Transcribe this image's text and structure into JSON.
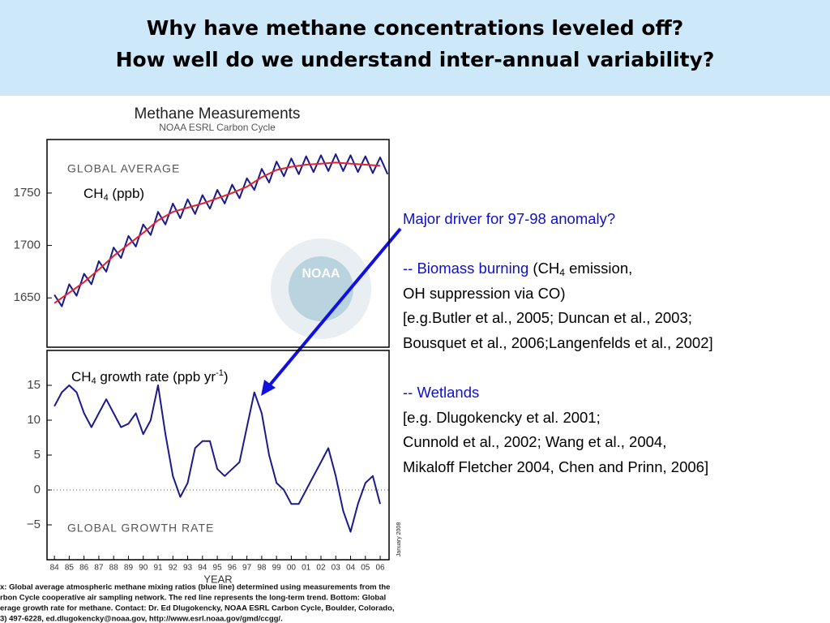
{
  "header": {
    "line1": "Why have methane concentrations leveled off?",
    "line2": "How well do we understand inter-annual variability?"
  },
  "figure": {
    "title": "Methane Measurements",
    "subtitle": "NOAA ESRL Carbon Cycle",
    "logo_text": "NOAA",
    "date_stamp": "January 2008",
    "caption": [
      "x:  Global average atmospheric methane mixing ratios (blue line) determined using measurements from the",
      "rbon Cycle cooperative air sampling network.  The red line represents the long-term trend.  Bottom:  Global",
      "erage growth rate for methane.  Contact:  Dr. Ed Dlugokencky, NOAA ESRL Carbon Cycle, Boulder, Colorado,",
      "3) 497-6228, ed.dlugokencky@noaa.gov, http://www.esrl.noaa.gov/gmd/ccgg/."
    ]
  },
  "chart_data": [
    {
      "type": "line",
      "annotation": "GLOBAL AVERAGE",
      "label": {
        "main": "CH",
        "sub": "4",
        "rest": " (ppb)"
      },
      "xlim": [
        1983.5,
        2006.6
      ],
      "ylim": [
        1603,
        1801
      ],
      "yticks": [
        1650,
        1700,
        1750
      ],
      "series": [
        {
          "color": "#1a1a8c",
          "x": [
            1984,
            1984.5,
            1985,
            1985.5,
            1986,
            1986.5,
            1987,
            1987.5,
            1988,
            1988.5,
            1989,
            1989.5,
            1990,
            1990.5,
            1991,
            1991.5,
            1992,
            1992.5,
            1993,
            1993.5,
            1994,
            1994.5,
            1995,
            1995.5,
            1996,
            1996.5,
            1997,
            1997.5,
            1998,
            1998.5,
            1999,
            1999.5,
            2000,
            2000.5,
            2001,
            2001.5,
            2002,
            2002.5,
            2003,
            2003.5,
            2004,
            2004.5,
            2005,
            2005.5,
            2006,
            2006.5
          ],
          "values": [
            1653,
            1642,
            1663,
            1652,
            1673,
            1663,
            1685,
            1675,
            1698,
            1688,
            1709,
            1699,
            1720,
            1710,
            1732,
            1720,
            1740,
            1726,
            1744,
            1730,
            1748,
            1735,
            1753,
            1740,
            1758,
            1745,
            1764,
            1753,
            1773,
            1760,
            1780,
            1766,
            1783,
            1768,
            1785,
            1770,
            1786,
            1771,
            1787,
            1771,
            1786,
            1770,
            1785,
            1769,
            1784,
            1768
          ]
        },
        {
          "color": "#e8202a",
          "x": [
            1984,
            1985,
            1986,
            1987,
            1988,
            1989,
            1990,
            1991,
            1992,
            1993,
            1994,
            1995,
            1996,
            1997,
            1998,
            1999,
            2000,
            2001,
            2002,
            2003,
            2004,
            2005,
            2006
          ],
          "values": [
            1645,
            1655,
            1665,
            1677,
            1690,
            1701,
            1712,
            1724,
            1732,
            1736,
            1740,
            1745,
            1750,
            1756,
            1765,
            1772,
            1775,
            1777,
            1778,
            1779,
            1778,
            1777,
            1776
          ]
        }
      ]
    },
    {
      "type": "line",
      "annotation": "GLOBAL GROWTH RATE",
      "label": {
        "main": "CH",
        "sub": "4",
        "mid": " growth rate (ppb yr",
        "sup": "-1",
        "rest": ")"
      },
      "x_label": "YEAR",
      "xlim": [
        1983.5,
        2006.6
      ],
      "ylim": [
        -10,
        20
      ],
      "yticks": [
        {
          "value": -5,
          "label": "−5"
        },
        0,
        5,
        10,
        15
      ],
      "reference_line": 0,
      "xticks": [
        {
          "value": 1984,
          "label": "84"
        },
        {
          "value": 1985,
          "label": "85"
        },
        {
          "value": 1986,
          "label": "86"
        },
        {
          "value": 1987,
          "label": "87"
        },
        {
          "value": 1988,
          "label": "88"
        },
        {
          "value": 1989,
          "label": "89"
        },
        {
          "value": 1990,
          "label": "90"
        },
        {
          "value": 1991,
          "label": "91"
        },
        {
          "value": 1992,
          "label": "92"
        },
        {
          "value": 1993,
          "label": "93"
        },
        {
          "value": 1994,
          "label": "94"
        },
        {
          "value": 1995,
          "label": "95"
        },
        {
          "value": 1996,
          "label": "96"
        },
        {
          "value": 1997,
          "label": "97"
        },
        {
          "value": 1998,
          "label": "98"
        },
        {
          "value": 1999,
          "label": "99"
        },
        {
          "value": 2000,
          "label": "00"
        },
        {
          "value": 2001,
          "label": "01"
        },
        {
          "value": 2002,
          "label": "02"
        },
        {
          "value": 2003,
          "label": "03"
        },
        {
          "value": 2004,
          "label": "04"
        },
        {
          "value": 2005,
          "label": "05"
        },
        {
          "value": 2006,
          "label": "06"
        }
      ],
      "series": [
        {
          "color": "#1a1a8c",
          "x": [
            1984,
            1984.5,
            1985,
            1985.5,
            1986,
            1986.5,
            1987,
            1987.5,
            1988,
            1988.5,
            1989,
            1989.5,
            1990,
            1990.5,
            1991,
            1991.5,
            1992,
            1992.5,
            1993,
            1993.5,
            1994,
            1994.5,
            1995,
            1995.5,
            1996,
            1996.5,
            1997,
            1997.5,
            1998,
            1998.5,
            1999,
            1999.5,
            2000,
            2000.5,
            2001,
            2001.5,
            2002,
            2002.5,
            2003,
            2003.5,
            2004,
            2004.5,
            2005,
            2005.5,
            2006
          ],
          "values": [
            12,
            14,
            15,
            14,
            11,
            9,
            11,
            13,
            11,
            9,
            9.5,
            11,
            8,
            10,
            15,
            8,
            2,
            -1,
            1,
            6,
            7,
            7,
            3,
            2,
            3,
            4,
            9,
            14,
            11,
            5,
            1,
            0,
            -2,
            -2,
            0,
            2,
            4,
            6,
            2,
            -3,
            -6,
            -2,
            1,
            2,
            -2
          ]
        }
      ]
    }
  ],
  "side_text": {
    "question": "Major driver for 97-98 anomaly?",
    "biomass_head": "-- Biomass burning",
    "biomass_a": " (CH",
    "biomass_sub": "4",
    "biomass_b": " emission,",
    "biomass_2": "OH suppression via CO)",
    "biomass_3": "[e.g.Butler et al., 2005; Duncan et al., 2003;",
    "biomass_4": "Bousquet et al., 2006;Langenfelds et al., 2002]",
    "wetlands_head": "-- Wetlands",
    "wetlands_2": "[e.g. Dlugokencky et al. 2001;",
    "wetlands_3": "Cunnold et al., 2002; Wang et al., 2004,",
    "wetlands_4": "Mikaloff Fletcher 2004, Chen and Prinn, 2006]"
  }
}
